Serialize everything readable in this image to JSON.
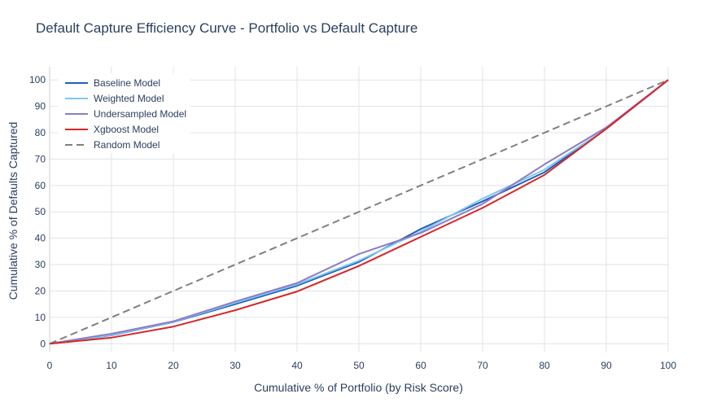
{
  "chart_data": {
    "type": "line",
    "title": "Default Capture Efficiency Curve - Portfolio vs Default Capture",
    "xlabel": "Cumulative % of Portfolio (by Risk Score)",
    "ylabel": "Cumulative % of Defaults Captured",
    "xlim": [
      0,
      100
    ],
    "ylim": [
      -3,
      105
    ],
    "x_ticks": [
      0,
      10,
      20,
      30,
      40,
      50,
      60,
      70,
      80,
      90,
      100
    ],
    "y_ticks": [
      0,
      10,
      20,
      30,
      40,
      50,
      60,
      70,
      80,
      90,
      100
    ],
    "grid": true,
    "legend_position": "top-left",
    "x": [
      0,
      10,
      20,
      30,
      40,
      50,
      60,
      70,
      80,
      90,
      100
    ],
    "series": [
      {
        "name": "Baseline Model",
        "color": "#1f5fbf",
        "dash": "solid",
        "values": [
          0,
          3.2,
          8.2,
          15,
          22,
          31,
          43.5,
          54,
          65,
          81.5,
          100
        ]
      },
      {
        "name": "Weighted Model",
        "color": "#7ec8f0",
        "dash": "solid",
        "values": [
          0,
          3.3,
          8.3,
          15.5,
          22.5,
          31.5,
          42.5,
          55,
          66,
          81.5,
          100
        ]
      },
      {
        "name": "Undersampled Model",
        "color": "#8e7cc3",
        "dash": "solid",
        "values": [
          0,
          3.8,
          8.5,
          16,
          23,
          34,
          42,
          53,
          68,
          82,
          100
        ]
      },
      {
        "name": "Xgboost Model",
        "color": "#d62728",
        "dash": "solid",
        "values": [
          0,
          2.3,
          6.5,
          12.7,
          19.8,
          29.5,
          40.5,
          51.5,
          64,
          81.5,
          100
        ]
      },
      {
        "name": "Random Model",
        "color": "#808080",
        "dash": "dash",
        "values": [
          0,
          10,
          20,
          30,
          40,
          50,
          60,
          70,
          80,
          90,
          100
        ]
      }
    ]
  }
}
